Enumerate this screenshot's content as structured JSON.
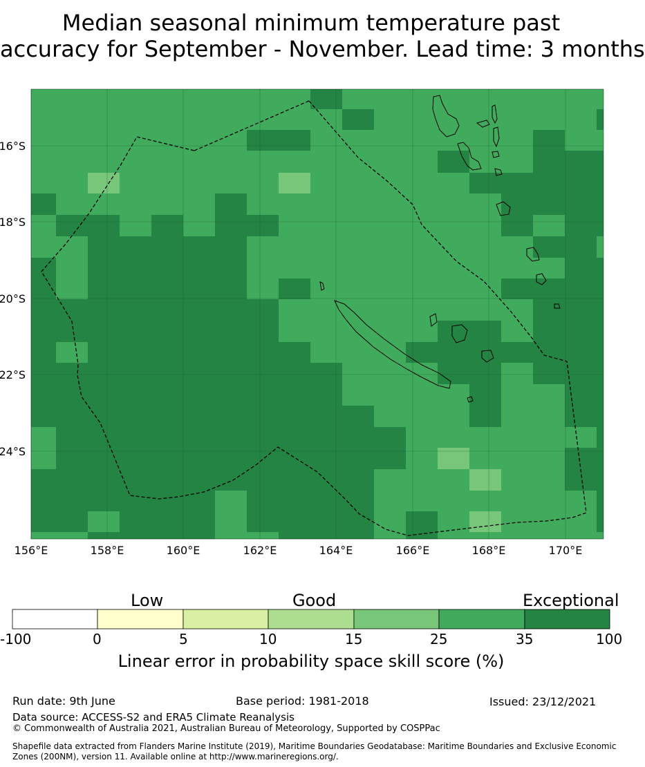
{
  "title": {
    "line1": "Median seasonal minimum temperature past",
    "line2": "accuracy for September - November. Lead time: 3 months"
  },
  "map": {
    "lon_ticks": [
      "156°E",
      "158°E",
      "160°E",
      "162°E",
      "164°E",
      "166°E",
      "168°E",
      "170°E"
    ],
    "lat_ticks": [
      "16°S",
      "18°S",
      "20°S",
      "22°S",
      "24°S"
    ],
    "colors": {
      "exceptional": "#238443",
      "good_high": "#41ab5d",
      "good_mid": "#78c679",
      "good_low": "#addd8e",
      "low_high": "#d9f0a3",
      "low": "#ffffcc",
      "none": "#ffffff",
      "eez_boundary": "#000000"
    }
  },
  "colorbar": {
    "categories": [
      "Low",
      "Good",
      "Exceptional"
    ],
    "ticks": [
      "-100",
      "0",
      "5",
      "10",
      "15",
      "25",
      "35",
      "100"
    ],
    "colors": [
      "#ffffff",
      "#ffffcc",
      "#d9f0a3",
      "#addd8e",
      "#78c679",
      "#41ab5d",
      "#238443"
    ],
    "label": "Linear error in probability space skill score (%)"
  },
  "footer": {
    "run_date": "Run date: 9th June",
    "base_period": "Base period: 1981-2018",
    "issued": "Issued: 23/12/2021",
    "data_source": "Data source: ACCESS-S2 and ERA5 Climate Reanalysis",
    "copyright": "© Commonwealth of Australia 2021, Australian Bureau of Meteorology, Supported by COSPPac",
    "shapefile": "Shapefile data extracted from Flanders Marine Institute (2019), Maritime Boundaries Geodatabase: Maritime Boundaries and Exclusive Economic Zones (200NM), version 11. Available online at http://www.marineregions.org/."
  }
}
